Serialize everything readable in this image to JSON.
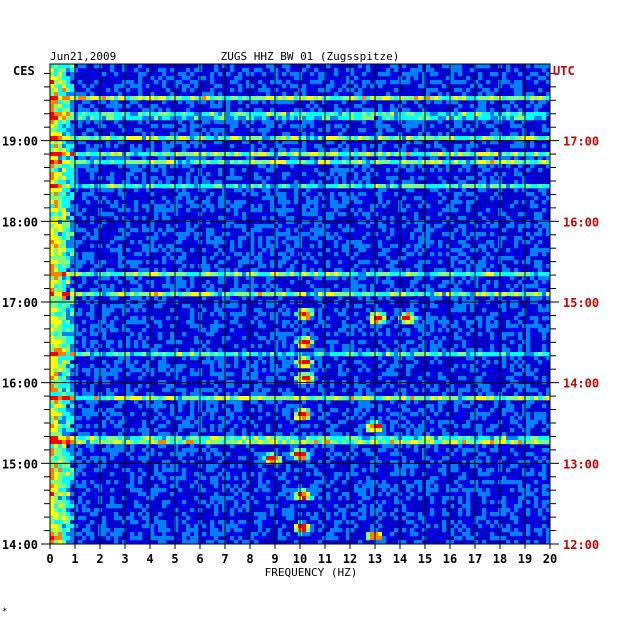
{
  "header": {
    "date": "Jun21,2009",
    "station": "ZUGS HHZ BW 01 (Zugsspitze)",
    "left_zone": "CES",
    "right_zone": "UTC"
  },
  "footer": {
    "mark": "*"
  },
  "chart_data": {
    "type": "heatmap",
    "title": "ZUGS HHZ BW 01 (Zugsspitze)",
    "date": "Jun21,2009",
    "xlabel": "FREQUENCY (HZ)",
    "xlim": [
      0,
      20
    ],
    "x_ticks": [
      "0",
      "1",
      "2",
      "3",
      "4",
      "5",
      "6",
      "7",
      "8",
      "9",
      "10",
      "11",
      "12",
      "13",
      "14",
      "15",
      "16",
      "17",
      "18",
      "19",
      "20"
    ],
    "left_axis_label": "CES",
    "right_axis_label": "UTC",
    "left_ticks": [
      {
        "label": "14:00",
        "hour": 14
      },
      {
        "label": "15:00",
        "hour": 15
      },
      {
        "label": "16:00",
        "hour": 16
      },
      {
        "label": "17:00",
        "hour": 17
      },
      {
        "label": "18:00",
        "hour": 18
      },
      {
        "label": "19:00",
        "hour": 19
      }
    ],
    "right_ticks": [
      {
        "label": "12:00",
        "hour": 14
      },
      {
        "label": "13:00",
        "hour": 15
      },
      {
        "label": "14:00",
        "hour": 16
      },
      {
        "label": "15:00",
        "hour": 17
      },
      {
        "label": "16:00",
        "hour": 18
      },
      {
        "label": "17:00",
        "hour": 19
      }
    ],
    "ylim_hours": [
      14,
      19.95
    ],
    "grid": true,
    "colormap": [
      "#00007f",
      "#0000ff",
      "#007fff",
      "#00ffff",
      "#7fff7f",
      "#ffff00",
      "#ff7f00",
      "#ff0000"
    ],
    "hotspots": [
      {
        "hour": 16.05,
        "freq": 10.2
      },
      {
        "hour": 16.25,
        "freq": 10.2
      },
      {
        "hour": 16.5,
        "freq": 10.2
      },
      {
        "hour": 16.85,
        "freq": 10.2
      },
      {
        "hour": 15.6,
        "freq": 10.1
      },
      {
        "hour": 15.1,
        "freq": 10.0
      },
      {
        "hour": 14.6,
        "freq": 10.1
      },
      {
        "hour": 14.2,
        "freq": 10.1
      },
      {
        "hour": 16.8,
        "freq": 13.1
      },
      {
        "hour": 16.8,
        "freq": 14.3
      },
      {
        "hour": 15.45,
        "freq": 13.0
      },
      {
        "hour": 15.05,
        "freq": 8.9
      },
      {
        "hour": 14.1,
        "freq": 13.0
      }
    ]
  }
}
